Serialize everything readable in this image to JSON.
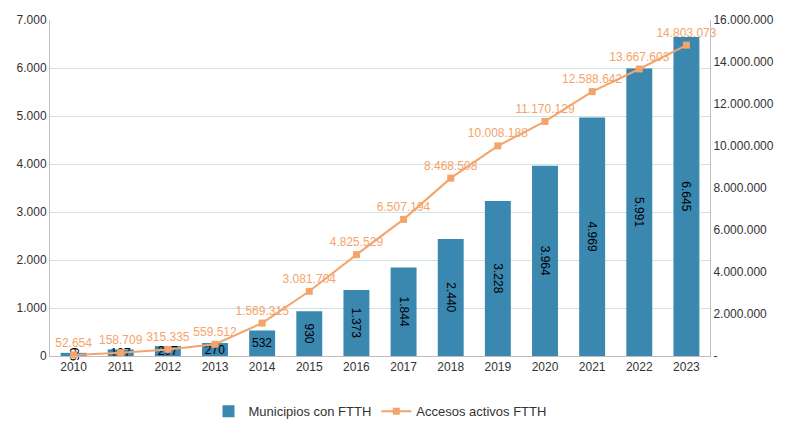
{
  "chart_data": {
    "type": "bar",
    "categories": [
      "2010",
      "2011",
      "2012",
      "2013",
      "2014",
      "2015",
      "2016",
      "2017",
      "2018",
      "2019",
      "2020",
      "2021",
      "2022",
      "2023"
    ],
    "series": [
      {
        "name": "Municipios con FTTH",
        "type": "bar",
        "axis": "y",
        "color": "#3a87b0",
        "values": [
          66,
          137,
          207,
          270,
          532,
          930,
          1373,
          1844,
          2440,
          3228,
          3964,
          4969,
          5991,
          6645
        ],
        "value_labels": [
          "66",
          "137",
          "207",
          "270",
          "532",
          "930",
          "1.373",
          "1.844",
          "2.440",
          "3.228",
          "3.964",
          "4.969",
          "5.991",
          "6.645"
        ]
      },
      {
        "name": "Accesos activos FTTH",
        "type": "line",
        "axis": "y2",
        "color": "#f4a46a",
        "marker": "square",
        "values": [
          52654,
          158709,
          315335,
          559512,
          1569315,
          3081704,
          4825529,
          6507194,
          8468508,
          10008188,
          11170129,
          12588642,
          13667603,
          14803073
        ],
        "value_labels": [
          "52.654",
          "158.709",
          "315.335",
          "559.512",
          "1.569.315",
          "3.081.704",
          "4.825.529",
          "6.507.194",
          "8.468.508",
          "10.008.188",
          "11.170.129",
          "12.588.642",
          "13.667.603",
          "14.803.073"
        ]
      }
    ],
    "ylim": [
      0,
      7000
    ],
    "yticks": [
      0,
      {
        "value": 1000,
        "label": "1.000"
      },
      {
        "value": 2000,
        "label": "2.000"
      },
      {
        "value": 3000,
        "label": "3.000"
      },
      {
        "value": 4000,
        "label": "4.000"
      },
      {
        "value": 5000,
        "label": "5.000"
      },
      {
        "value": 6000,
        "label": "6.000"
      },
      {
        "value": 7000,
        "label": "7.000"
      }
    ],
    "y2lim": [
      0,
      16000000
    ],
    "y2ticks": [
      {
        "value": 0,
        "label": "-"
      },
      {
        "value": 2000000,
        "label": "2.000.000"
      },
      {
        "value": 4000000,
        "label": "4.000.000"
      },
      {
        "value": 6000000,
        "label": "6.000.000"
      },
      {
        "value": 8000000,
        "label": "8.000.000"
      },
      {
        "value": 10000000,
        "label": "10.000.000"
      },
      {
        "value": 12000000,
        "label": "12.000.000"
      },
      {
        "value": 14000000,
        "label": "14.000.000"
      },
      {
        "value": 16000000,
        "label": "16.000.000"
      }
    ],
    "grid": true,
    "legend": "bottom",
    "data_labels": true
  }
}
